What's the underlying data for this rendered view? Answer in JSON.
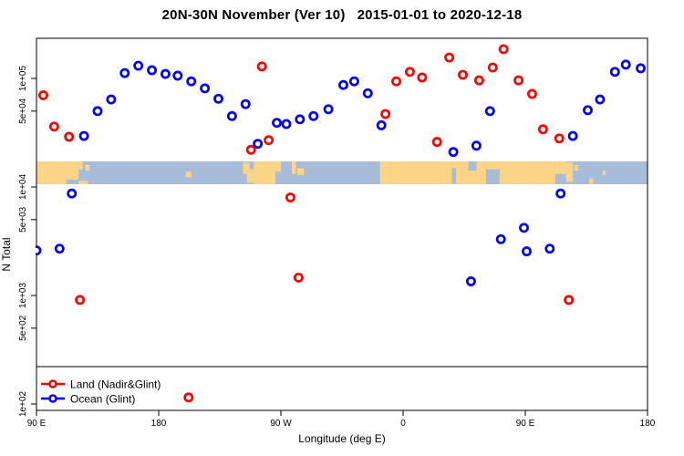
{
  "title": "20N-30N November (Ver 10)   2015-01-01 to 2020-12-18",
  "axes": {
    "x": {
      "label": "Longitude (deg E)",
      "range_deg_east": [
        90,
        540
      ],
      "ticks": [
        {
          "value": 90,
          "label": "90 E"
        },
        {
          "value": 180,
          "label": "180"
        },
        {
          "value": 270,
          "label": "90 W"
        },
        {
          "value": 360,
          "label": "0"
        },
        {
          "value": 450,
          "label": "90 E"
        },
        {
          "value": 540,
          "label": "180"
        }
      ]
    },
    "y": {
      "label": "N Total",
      "scale": "log10",
      "range": [
        100,
        200000
      ],
      "ticks": [
        {
          "value": 100000,
          "label": "1e+05"
        },
        {
          "value": 50000,
          "label": "5e+04"
        },
        {
          "value": 10000,
          "label": "1e+04"
        },
        {
          "value": 5000,
          "label": "5e+03"
        },
        {
          "value": 1000,
          "label": "1e+03"
        },
        {
          "value": 500,
          "label": "5e+02"
        },
        {
          "value": 100,
          "label": "1e+02"
        }
      ]
    }
  },
  "legend": {
    "items": [
      {
        "label": "Land (Nadir&Glint)",
        "color": "#ff0000"
      },
      {
        "label": "Ocean (Glint)",
        "color": "#0000ff"
      }
    ]
  },
  "chart_data": {
    "type": "scatter",
    "title": "20N-30N November (Ver 10)   2015-01-01 to 2020-12-18",
    "xlabel": "Longitude (deg E)",
    "ylabel": "N Total",
    "x_axis_note": "longitude in deg E continuing eastward 90..540 (wraps past 180 and 0)",
    "xlim": [
      90,
      540
    ],
    "ylim_log": [
      100,
      200000
    ],
    "grid": false,
    "legend_position": "bottom-left strip",
    "series": [
      {
        "name": "Land (Nadir&Glint)",
        "color": "#ff0000",
        "marker": "open-circle",
        "points": [
          {
            "lon": 95,
            "n": 70000
          },
          {
            "lon": 103,
            "n": 36000
          },
          {
            "lon": 114,
            "n": 29000
          },
          {
            "lon": 122,
            "n": 910
          },
          {
            "lon": 202,
            "n": 115
          },
          {
            "lon": 248,
            "n": 22000
          },
          {
            "lon": 256,
            "n": 129000
          },
          {
            "lon": 261,
            "n": 27000
          },
          {
            "lon": 277,
            "n": 8000
          },
          {
            "lon": 283,
            "n": 1460
          },
          {
            "lon": 347,
            "n": 47000
          },
          {
            "lon": 355,
            "n": 94000
          },
          {
            "lon": 365,
            "n": 115000
          },
          {
            "lon": 374,
            "n": 102000
          },
          {
            "lon": 385,
            "n": 26000
          },
          {
            "lon": 394,
            "n": 156000
          },
          {
            "lon": 404,
            "n": 108000
          },
          {
            "lon": 416,
            "n": 96000
          },
          {
            "lon": 426,
            "n": 126000
          },
          {
            "lon": 434,
            "n": 186000
          },
          {
            "lon": 445,
            "n": 96000
          },
          {
            "lon": 455,
            "n": 72000
          },
          {
            "lon": 463,
            "n": 34000
          },
          {
            "lon": 475,
            "n": 28000
          },
          {
            "lon": 482,
            "n": 910
          }
        ]
      },
      {
        "name": "Ocean (Glint)",
        "color": "#0000ff",
        "marker": "open-circle",
        "points": [
          {
            "lon": 90,
            "n": 2600
          },
          {
            "lon": 107,
            "n": 2700
          },
          {
            "lon": 116,
            "n": 8700
          },
          {
            "lon": 125,
            "n": 29500
          },
          {
            "lon": 135,
            "n": 50000
          },
          {
            "lon": 145,
            "n": 64000
          },
          {
            "lon": 155,
            "n": 112000
          },
          {
            "lon": 165,
            "n": 131000
          },
          {
            "lon": 175,
            "n": 119000
          },
          {
            "lon": 185,
            "n": 110000
          },
          {
            "lon": 194,
            "n": 106000
          },
          {
            "lon": 204,
            "n": 94000
          },
          {
            "lon": 214,
            "n": 81000
          },
          {
            "lon": 224,
            "n": 65000
          },
          {
            "lon": 234,
            "n": 45000
          },
          {
            "lon": 244,
            "n": 58000
          },
          {
            "lon": 253,
            "n": 25000
          },
          {
            "lon": 267,
            "n": 39000
          },
          {
            "lon": 274,
            "n": 38000
          },
          {
            "lon": 284,
            "n": 42000
          },
          {
            "lon": 294,
            "n": 45000
          },
          {
            "lon": 305,
            "n": 52000
          },
          {
            "lon": 316,
            "n": 87000
          },
          {
            "lon": 324,
            "n": 94000
          },
          {
            "lon": 334,
            "n": 73000
          },
          {
            "lon": 344,
            "n": 37000
          },
          {
            "lon": 397,
            "n": 21000
          },
          {
            "lon": 410,
            "n": 1350
          },
          {
            "lon": 414,
            "n": 24000
          },
          {
            "lon": 424,
            "n": 50000
          },
          {
            "lon": 432,
            "n": 3300
          },
          {
            "lon": 449,
            "n": 4200
          },
          {
            "lon": 451,
            "n": 2550
          },
          {
            "lon": 468,
            "n": 2700
          },
          {
            "lon": 476,
            "n": 8700
          },
          {
            "lon": 485,
            "n": 29500
          },
          {
            "lon": 496,
            "n": 51000
          },
          {
            "lon": 505,
            "n": 64000
          },
          {
            "lon": 516,
            "n": 115000
          },
          {
            "lon": 524,
            "n": 134000
          },
          {
            "lon": 535,
            "n": 124000
          }
        ]
      }
    ],
    "map_band": {
      "description": "world-map strip of the 20N-30N latitude band drawn across the plot near N=1e+04",
      "ocean_color": "#a6bcd9",
      "land_color": "#fbd486",
      "land_patches": [
        {
          "lon0": 90,
          "lon1": 112,
          "t0": 0,
          "t1": 1
        },
        {
          "lon0": 112,
          "lon1": 121,
          "t0": 0,
          "t1": 0.8
        },
        {
          "lon0": 121,
          "lon1": 128,
          "t0": 0.85,
          "t1": 1
        },
        {
          "lon0": 121,
          "lon1": 124,
          "t0": 0,
          "t1": 0.35
        },
        {
          "lon0": 126,
          "lon1": 129,
          "t0": 0.15,
          "t1": 0.4
        },
        {
          "lon0": 200,
          "lon1": 204,
          "t0": 0.45,
          "t1": 0.7
        },
        {
          "lon0": 242,
          "lon1": 247,
          "t0": 0.05,
          "t1": 0.55
        },
        {
          "lon0": 245,
          "lon1": 250,
          "t0": 0.35,
          "t1": 0.95
        },
        {
          "lon0": 250,
          "lon1": 266,
          "t0": 0,
          "t1": 1
        },
        {
          "lon0": 266,
          "lon1": 270,
          "t0": 0,
          "t1": 0.45
        },
        {
          "lon0": 278,
          "lon1": 281,
          "t0": 0,
          "t1": 0.55
        },
        {
          "lon0": 282,
          "lon1": 287,
          "t0": 0.3,
          "t1": 0.6
        },
        {
          "lon0": 343,
          "lon1": 396,
          "t0": 0,
          "t1": 1
        },
        {
          "lon0": 396,
          "lon1": 399,
          "t0": 0,
          "t1": 0.3
        },
        {
          "lon0": 399,
          "lon1": 408,
          "t0": 0,
          "t1": 1
        },
        {
          "lon0": 408,
          "lon1": 414,
          "t0": 0.4,
          "t1": 1
        },
        {
          "lon0": 414,
          "lon1": 421,
          "t0": 0,
          "t1": 1
        },
        {
          "lon0": 421,
          "lon1": 431,
          "t0": 0,
          "t1": 0.35
        },
        {
          "lon0": 431,
          "lon1": 452,
          "t0": 0,
          "t1": 1
        },
        {
          "lon0": 452,
          "lon1": 472,
          "t0": 0,
          "t1": 1
        },
        {
          "lon0": 472,
          "lon1": 480,
          "t0": 0,
          "t1": 0.55
        },
        {
          "lon0": 480,
          "lon1": 485,
          "t0": 0.05,
          "t1": 0.9
        },
        {
          "lon0": 486,
          "lon1": 489,
          "t0": 0.15,
          "t1": 0.4
        },
        {
          "lon0": 497,
          "lon1": 500,
          "t0": 0.75,
          "t1": 1
        },
        {
          "lon0": 507,
          "lon1": 509,
          "t0": 0.4,
          "t1": 0.6
        }
      ]
    }
  }
}
